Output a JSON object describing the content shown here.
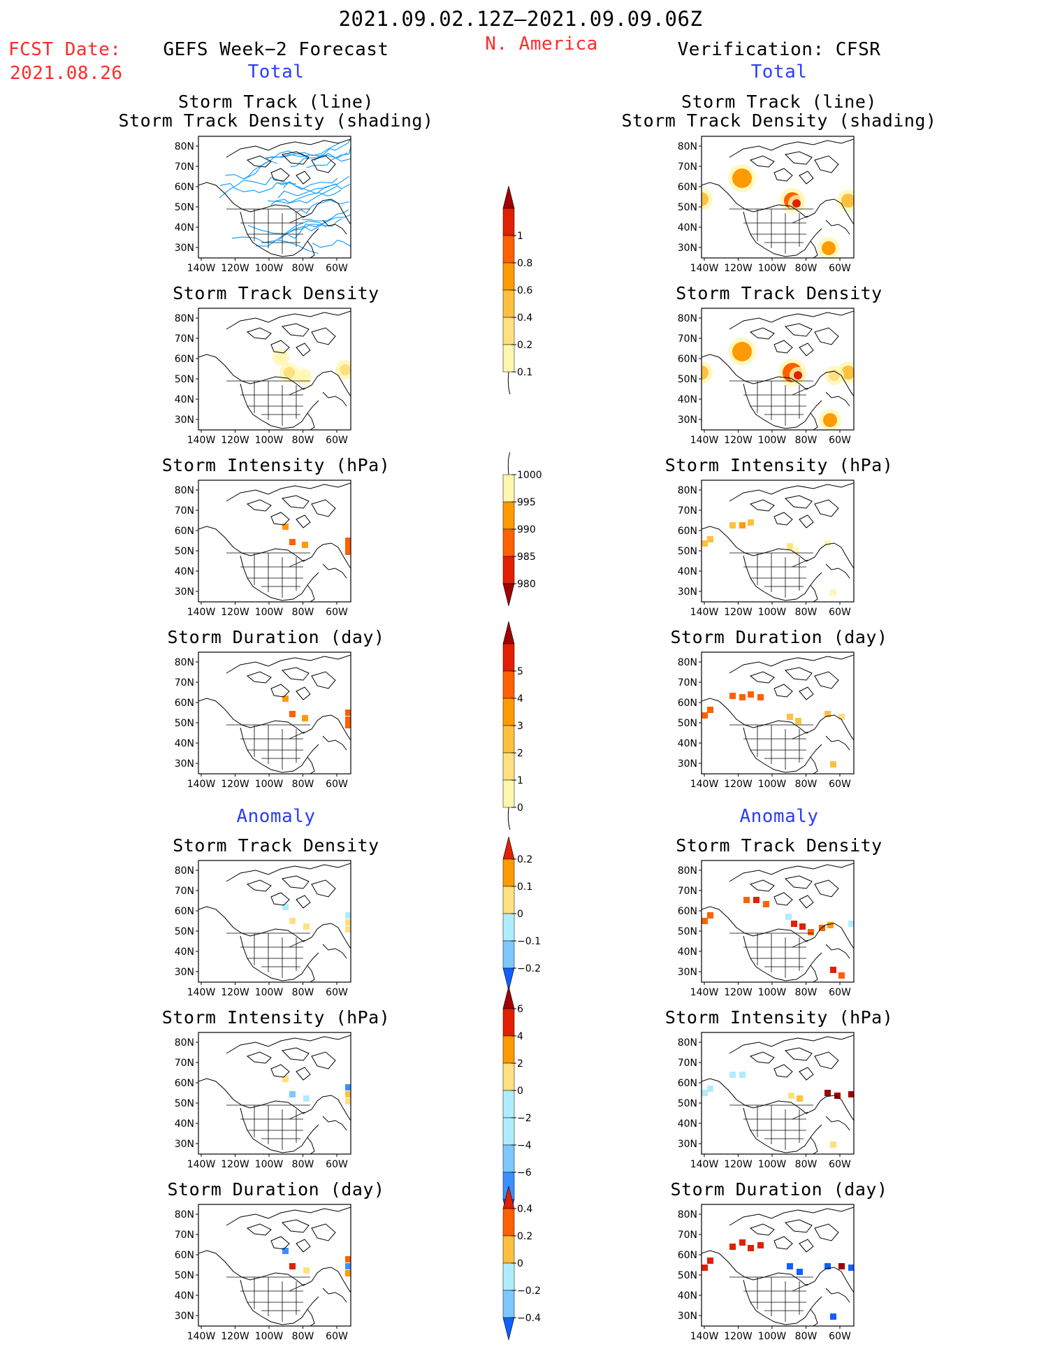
{
  "header": {
    "date_range": "2021.09.02.12Z–2021.09.09.06Z",
    "region": "N. America",
    "fcst_label": "FCST Date:",
    "fcst_date": "2021.08.26",
    "left_title": "GEFS Week−2 Forecast",
    "right_title": "Verification: CFSR",
    "total_label": "Total",
    "anomaly_label": "Anomaly"
  },
  "panel_titles": {
    "track": [
      "Storm Track (line)",
      "Storm Track Density (shading)"
    ],
    "density": "Storm Track Density",
    "intensity": "Storm Intensity (hPa)",
    "duration": "Storm Duration (day)"
  },
  "axes": {
    "lat_labels": [
      "80N",
      "70N",
      "60N",
      "50N",
      "40N",
      "30N"
    ],
    "lon_labels": [
      "140W",
      "120W",
      "100W",
      "80W",
      "60W"
    ]
  },
  "colorbars": {
    "density_total": [
      "1",
      "0.8",
      "0.6",
      "0.4",
      "0.2",
      "0.1"
    ],
    "intensity_total": [
      "1000",
      "995",
      "990",
      "985",
      "980"
    ],
    "duration_total": [
      "5",
      "4",
      "3",
      "2",
      "1",
      "0"
    ],
    "density_anom": [
      "0.2",
      "0.1",
      "0",
      "−0.1",
      "−0.2"
    ],
    "intensity_anom": [
      "6",
      "4",
      "2",
      "0",
      "−2",
      "−4",
      "−6"
    ],
    "duration_anom": [
      "0.4",
      "0.2",
      "0",
      "−0.2",
      "−0.4"
    ]
  },
  "colors": {
    "red": "#ff2a2a",
    "blue": "#2a3cff",
    "track_line": "#1aa0ff",
    "warm": [
      "#fff6b0",
      "#ffe080",
      "#ffc040",
      "#ff9a00",
      "#ff6000",
      "#e02000",
      "#a00000"
    ],
    "cool": [
      "#b0ecff",
      "#7cc8ff",
      "#3a90ff",
      "#1060ff"
    ]
  }
}
